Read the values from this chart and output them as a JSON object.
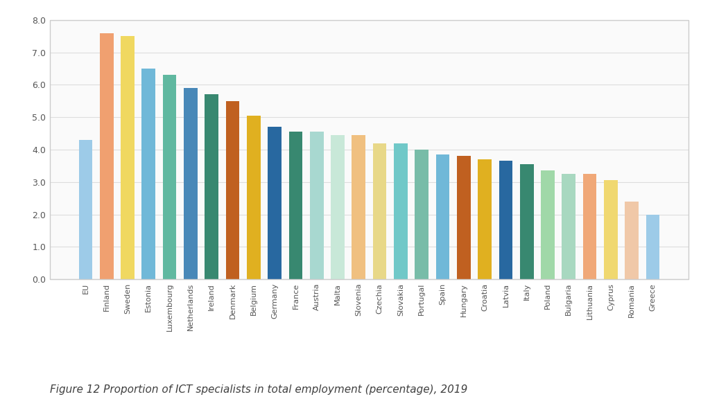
{
  "categories": [
    "EU",
    "Finland",
    "Sweden",
    "Estonia",
    "Luxembourg",
    "Netherlands",
    "Ireland",
    "Denmark",
    "Belgium",
    "Germany",
    "France",
    "Austria",
    "Malta",
    "Slovenia",
    "Czechia",
    "Slovakia",
    "Portugal",
    "Spain",
    "Hungary",
    "Croatia",
    "Latvia",
    "Italy",
    "Poland",
    "Bulgaria",
    "Lithuania",
    "Cyprus",
    "Romania",
    "Greece"
  ],
  "values": [
    4.3,
    7.6,
    7.5,
    6.5,
    6.3,
    5.9,
    5.7,
    5.5,
    5.05,
    4.7,
    4.55,
    4.55,
    4.45,
    4.45,
    4.2,
    4.2,
    4.0,
    3.85,
    3.8,
    3.7,
    3.65,
    3.55,
    3.35,
    3.25,
    3.25,
    3.05,
    2.4,
    2.0
  ],
  "bar_colors": [
    "#9DCBE8",
    "#F0A070",
    "#F0D860",
    "#70B8D8",
    "#60B8A0",
    "#4888B8",
    "#388870",
    "#C06020",
    "#E0B020",
    "#2868A0",
    "#388870",
    "#A8D8D0",
    "#C8E8D8",
    "#F0C080",
    "#E8D888",
    "#70C8C8",
    "#78BCA8",
    "#70B8D8",
    "#C06020",
    "#E0B020",
    "#2868A0",
    "#388870",
    "#A0D8A8",
    "#A8D8C0",
    "#F0A878",
    "#F0D870",
    "#F0C8A8",
    "#9DCBE8"
  ],
  "caption": "Figure 12 Proportion of ICT specialists in total employment (percentage), 2019",
  "ylim": [
    0,
    8.0
  ],
  "yticks": [
    0.0,
    1.0,
    2.0,
    3.0,
    4.0,
    5.0,
    6.0,
    7.0,
    8.0
  ],
  "figure_bg": "#F5F5F5",
  "plot_bg": "#FAFAFA",
  "grid_color": "#DDDDDD",
  "border_color": "#CCCCCC",
  "tick_color": "#555555",
  "caption_color": "#404040"
}
